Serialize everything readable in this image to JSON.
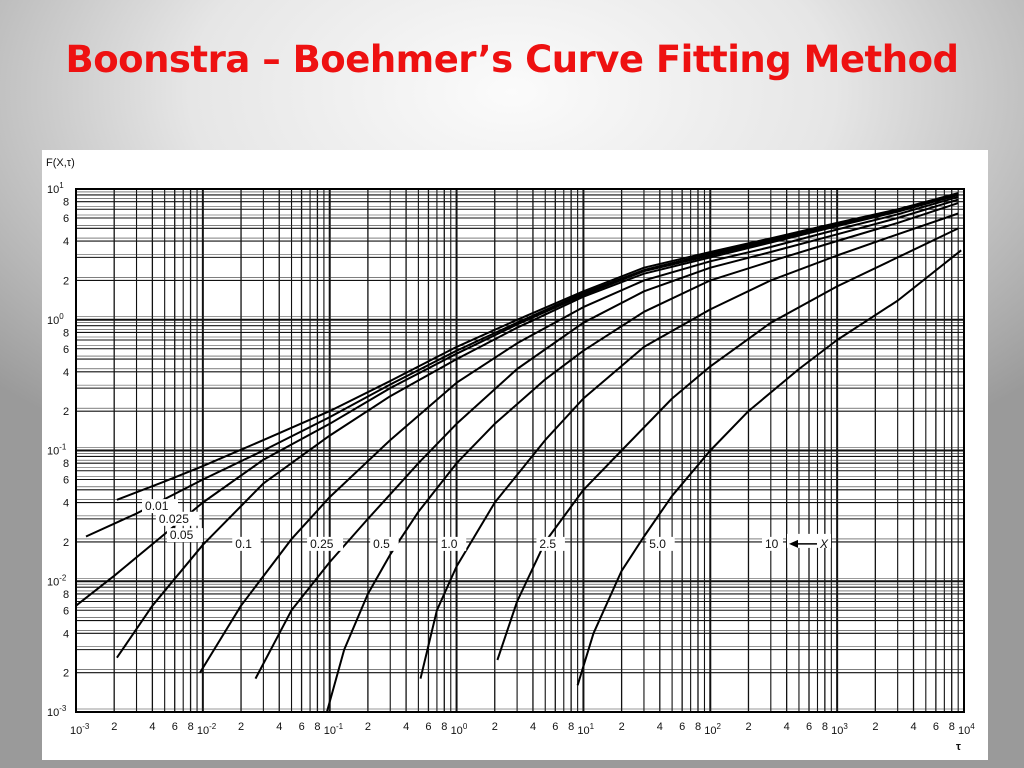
{
  "slide": {
    "title": "Boonstra – Boehmer’s Curve Fitting Method"
  },
  "chart_data": {
    "type": "line",
    "title": "",
    "xlabel": "τ",
    "ylabel": "F(X,τ)",
    "xscale": "log",
    "yscale": "log",
    "xlim": [
      0.001,
      10000
    ],
    "ylim": [
      0.001,
      10
    ],
    "grid": true,
    "x_ticks": [
      {
        "value": 0.001,
        "base": "10",
        "exp": "-3"
      },
      {
        "value": 0.002,
        "label": "2"
      },
      {
        "value": 0.004,
        "label": "4"
      },
      {
        "value": 0.006,
        "label": "6"
      },
      {
        "value": 0.008,
        "label": "8"
      },
      {
        "value": 0.01,
        "base": "10",
        "exp": "-2"
      },
      {
        "value": 0.02,
        "label": "2"
      },
      {
        "value": 0.04,
        "label": "4"
      },
      {
        "value": 0.06,
        "label": "6"
      },
      {
        "value": 0.08,
        "label": "8"
      },
      {
        "value": 0.1,
        "base": "10",
        "exp": "-1"
      },
      {
        "value": 0.2,
        "label": "2"
      },
      {
        "value": 0.4,
        "label": "4"
      },
      {
        "value": 0.6,
        "label": "6"
      },
      {
        "value": 0.8,
        "label": "8"
      },
      {
        "value": 1,
        "base": "10",
        "exp": "0"
      },
      {
        "value": 2,
        "label": "2"
      },
      {
        "value": 4,
        "label": "4"
      },
      {
        "value": 6,
        "label": "6"
      },
      {
        "value": 8,
        "label": "8"
      },
      {
        "value": 10,
        "base": "10",
        "exp": "1"
      },
      {
        "value": 20,
        "label": "2"
      },
      {
        "value": 40,
        "label": "4"
      },
      {
        "value": 60,
        "label": "6"
      },
      {
        "value": 80,
        "label": "8"
      },
      {
        "value": 100,
        "base": "10",
        "exp": "2"
      },
      {
        "value": 200,
        "label": "2"
      },
      {
        "value": 400,
        "label": "4"
      },
      {
        "value": 600,
        "label": "6"
      },
      {
        "value": 800,
        "label": "8"
      },
      {
        "value": 1000,
        "base": "10",
        "exp": "3"
      },
      {
        "value": 2000,
        "label": "2"
      },
      {
        "value": 4000,
        "label": "4"
      },
      {
        "value": 6000,
        "label": "6"
      },
      {
        "value": 8000,
        "label": "8"
      },
      {
        "value": 10000,
        "base": "10",
        "exp": "4"
      }
    ],
    "y_ticks": [
      {
        "value": 10,
        "base": "10",
        "exp": "1"
      },
      {
        "value": 8,
        "label": "8"
      },
      {
        "value": 6,
        "label": "6"
      },
      {
        "value": 4,
        "label": "4"
      },
      {
        "value": 2,
        "label": "2"
      },
      {
        "value": 1,
        "base": "10",
        "exp": "0"
      },
      {
        "value": 0.8,
        "label": "8"
      },
      {
        "value": 0.6,
        "label": "6"
      },
      {
        "value": 0.4,
        "label": "4"
      },
      {
        "value": 0.2,
        "label": "2"
      },
      {
        "value": 0.1,
        "base": "10",
        "exp": "-1"
      },
      {
        "value": 0.08,
        "label": "8"
      },
      {
        "value": 0.06,
        "label": "6"
      },
      {
        "value": 0.04,
        "label": "4"
      },
      {
        "value": 0.02,
        "label": "2"
      },
      {
        "value": 0.01,
        "base": "10",
        "exp": "-2"
      },
      {
        "value": 0.008,
        "label": "8"
      },
      {
        "value": 0.006,
        "label": "6"
      },
      {
        "value": 0.004,
        "label": "4"
      },
      {
        "value": 0.002,
        "label": "2"
      },
      {
        "value": 0.001,
        "base": "10",
        "exp": "-3"
      }
    ],
    "series": [
      {
        "label": "0.01",
        "x": [
          0.0021,
          0.005,
          0.01,
          0.03,
          0.1,
          0.3,
          1,
          3,
          10,
          30,
          100,
          300,
          1000,
          3000,
          9000
        ],
        "y": [
          0.042,
          0.058,
          0.076,
          0.12,
          0.2,
          0.34,
          0.62,
          1.0,
          1.65,
          2.5,
          3.3,
          4.2,
          5.5,
          7.0,
          9.3
        ]
      },
      {
        "label": "0.025",
        "x": [
          0.0012,
          0.003,
          0.01,
          0.03,
          0.1,
          0.3,
          1,
          3,
          10,
          30,
          100,
          300,
          1000,
          3000,
          9000
        ],
        "y": [
          0.022,
          0.033,
          0.06,
          0.1,
          0.18,
          0.32,
          0.58,
          0.95,
          1.6,
          2.4,
          3.2,
          4.1,
          5.4,
          6.9,
          9.2
        ]
      },
      {
        "label": "0.05",
        "x": [
          0.001,
          0.002,
          0.005,
          0.01,
          0.03,
          0.1,
          0.3,
          1,
          3,
          10,
          30,
          100,
          300,
          1000,
          3000,
          9000
        ],
        "y": [
          0.0065,
          0.011,
          0.023,
          0.04,
          0.085,
          0.16,
          0.3,
          0.55,
          0.92,
          1.55,
          2.35,
          3.1,
          4.0,
          5.3,
          6.8,
          9.1
        ]
      },
      {
        "label": "0.1",
        "x": [
          0.0021,
          0.004,
          0.01,
          0.03,
          0.1,
          0.3,
          1,
          3,
          10,
          30,
          100,
          300,
          1000,
          3000,
          9000
        ],
        "y": [
          0.0026,
          0.0065,
          0.019,
          0.056,
          0.13,
          0.26,
          0.5,
          0.87,
          1.5,
          2.25,
          3.0,
          3.9,
          5.2,
          6.7,
          9.0
        ]
      },
      {
        "label": "0.25",
        "x": [
          0.0095,
          0.02,
          0.05,
          0.1,
          0.3,
          1,
          3,
          10,
          30,
          100,
          300,
          1000,
          3000,
          9000
        ],
        "y": [
          0.002,
          0.0065,
          0.021,
          0.044,
          0.12,
          0.33,
          0.66,
          1.25,
          2.0,
          2.8,
          3.6,
          4.9,
          6.4,
          8.7
        ]
      },
      {
        "label": "0.5",
        "x": [
          0.026,
          0.05,
          0.1,
          0.2,
          0.5,
          1,
          3,
          10,
          30,
          100,
          300,
          1000,
          3000,
          9000
        ],
        "y": [
          0.0018,
          0.006,
          0.014,
          0.03,
          0.08,
          0.16,
          0.42,
          0.95,
          1.65,
          2.5,
          3.3,
          4.5,
          6.0,
          8.3
        ]
      },
      {
        "label": "1.0",
        "x": [
          0.095,
          0.13,
          0.2,
          0.3,
          0.5,
          1,
          2,
          5,
          10,
          30,
          100,
          300,
          1000,
          3000,
          9000
        ],
        "y": [
          0.001,
          0.003,
          0.008,
          0.016,
          0.034,
          0.08,
          0.16,
          0.35,
          0.58,
          1.15,
          2.0,
          2.8,
          4.0,
          5.5,
          7.8
        ]
      },
      {
        "label": "2.5",
        "x": [
          0.52,
          0.7,
          1,
          2,
          5,
          10,
          30,
          100,
          300,
          1000,
          3000,
          9000
        ],
        "y": [
          0.0018,
          0.006,
          0.013,
          0.04,
          0.12,
          0.25,
          0.62,
          1.2,
          2.0,
          3.1,
          4.5,
          6.5
        ]
      },
      {
        "label": "5.0",
        "x": [
          2.1,
          3,
          5,
          10,
          20,
          50,
          100,
          300,
          1000,
          3000,
          9000
        ],
        "y": [
          0.0025,
          0.007,
          0.02,
          0.05,
          0.1,
          0.25,
          0.44,
          0.95,
          1.8,
          3.0,
          5.0
        ]
      },
      {
        "label": "10",
        "x": [
          9,
          12,
          20,
          30,
          50,
          100,
          200,
          500,
          1000,
          3000,
          9500
        ],
        "y": [
          0.0016,
          0.004,
          0.012,
          0.022,
          0.045,
          0.1,
          0.2,
          0.42,
          0.7,
          1.4,
          3.4
        ]
      }
    ],
    "annotation": {
      "text": "X",
      "arrow": true
    },
    "series_label_positions": [
      {
        "label": "0.01",
        "x": 0.0035,
        "y": 0.035
      },
      {
        "label": "0.025",
        "x": 0.0045,
        "y": 0.028
      },
      {
        "label": "0.05",
        "x": 0.0055,
        "y": 0.021
      },
      {
        "label": "0.1",
        "x": 0.018,
        "y": 0.018
      },
      {
        "label": "0.25",
        "x": 0.07,
        "y": 0.018
      },
      {
        "label": "0.5",
        "x": 0.22,
        "y": 0.018
      },
      {
        "label": "1.0",
        "x": 0.75,
        "y": 0.018
      },
      {
        "label": "2.5",
        "x": 4.5,
        "y": 0.018
      },
      {
        "label": "5.0",
        "x": 33,
        "y": 0.018
      },
      {
        "label": "10",
        "x": 270,
        "y": 0.018
      }
    ]
  }
}
